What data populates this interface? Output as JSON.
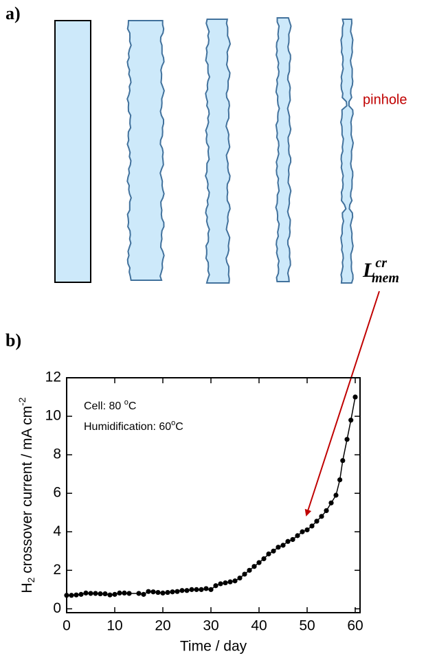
{
  "panel_a": {
    "label": "a)",
    "annotation": "pinhole",
    "symbol": {
      "base": "L",
      "sup": "cr",
      "sub": "mem"
    }
  },
  "panel_b": {
    "label": "b)"
  },
  "chart_data": {
    "type": "line",
    "x_label": "Time / day",
    "y_label": {
      "base": "H",
      "sub": "2",
      "rest": " crossover current / mA cm",
      "sup": "-2"
    },
    "annotations": [
      {
        "text": "Cell: 80 ",
        "sup": "o",
        "tail": "C"
      },
      {
        "text": "Humidification: 60",
        "sup": "o",
        "tail": "C"
      }
    ],
    "x": [
      0,
      1,
      2,
      3,
      4,
      5,
      6,
      7,
      8,
      9,
      10,
      11,
      12,
      13,
      15,
      16,
      17,
      18,
      19,
      20,
      21,
      22,
      23,
      24,
      25,
      26,
      27,
      28,
      29,
      30,
      31,
      32,
      33,
      34,
      35,
      36,
      37,
      38,
      39,
      40,
      41,
      42,
      43,
      44,
      45,
      46,
      47,
      48,
      49,
      50,
      51,
      52,
      53,
      54,
      55,
      56,
      56.8,
      57.4,
      58.3,
      59.1,
      60
    ],
    "series": [
      {
        "color": "#000000",
        "values": [
          0.7,
          0.7,
          0.72,
          0.75,
          0.82,
          0.8,
          0.8,
          0.78,
          0.78,
          0.72,
          0.75,
          0.82,
          0.82,
          0.8,
          0.8,
          0.75,
          0.9,
          0.88,
          0.85,
          0.82,
          0.85,
          0.88,
          0.9,
          0.95,
          0.95,
          1.0,
          1.0,
          1.0,
          1.05,
          1.0,
          1.2,
          1.3,
          1.35,
          1.4,
          1.45,
          1.6,
          1.8,
          2.0,
          2.2,
          2.4,
          2.6,
          2.85,
          3.0,
          3.2,
          3.3,
          3.5,
          3.6,
          3.8,
          4.0,
          4.1,
          4.3,
          4.55,
          4.8,
          5.1,
          5.5,
          5.9,
          6.7,
          7.7,
          8.8,
          9.8,
          11.0
        ]
      }
    ],
    "xlim": [
      0,
      61
    ],
    "xticks": [
      0,
      10,
      20,
      30,
      40,
      50,
      60
    ],
    "ylim": [
      -0.2,
      12
    ],
    "yticks": [
      0,
      2,
      4,
      6,
      8,
      10,
      12
    ],
    "grid": false
  }
}
